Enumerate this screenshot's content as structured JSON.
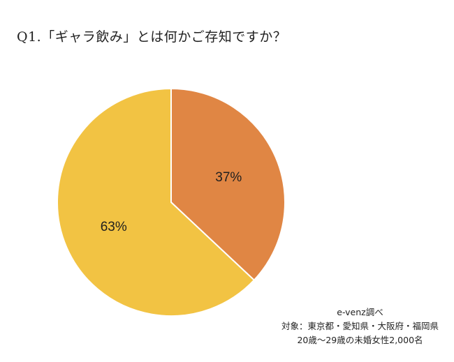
{
  "chart_data": {
    "type": "pie",
    "title": "Q1.「ギャラ飲み」とは何かご存知ですか？",
    "slices": [
      {
        "label": "37%",
        "value": 37,
        "color": "#E08644"
      },
      {
        "label": "63%",
        "value": 63,
        "color": "#F2C343"
      }
    ],
    "start": "12 o'clock",
    "direction": "clockwise"
  },
  "source": {
    "line1": "e-venz調べ",
    "line2": "対象：東京都・愛知県・大阪府・福岡県",
    "line3": "20歳〜29歳の未婚女性2,000名"
  },
  "colors": {
    "background": "#FFFFFF",
    "slice_border": "#FFFFFF"
  }
}
